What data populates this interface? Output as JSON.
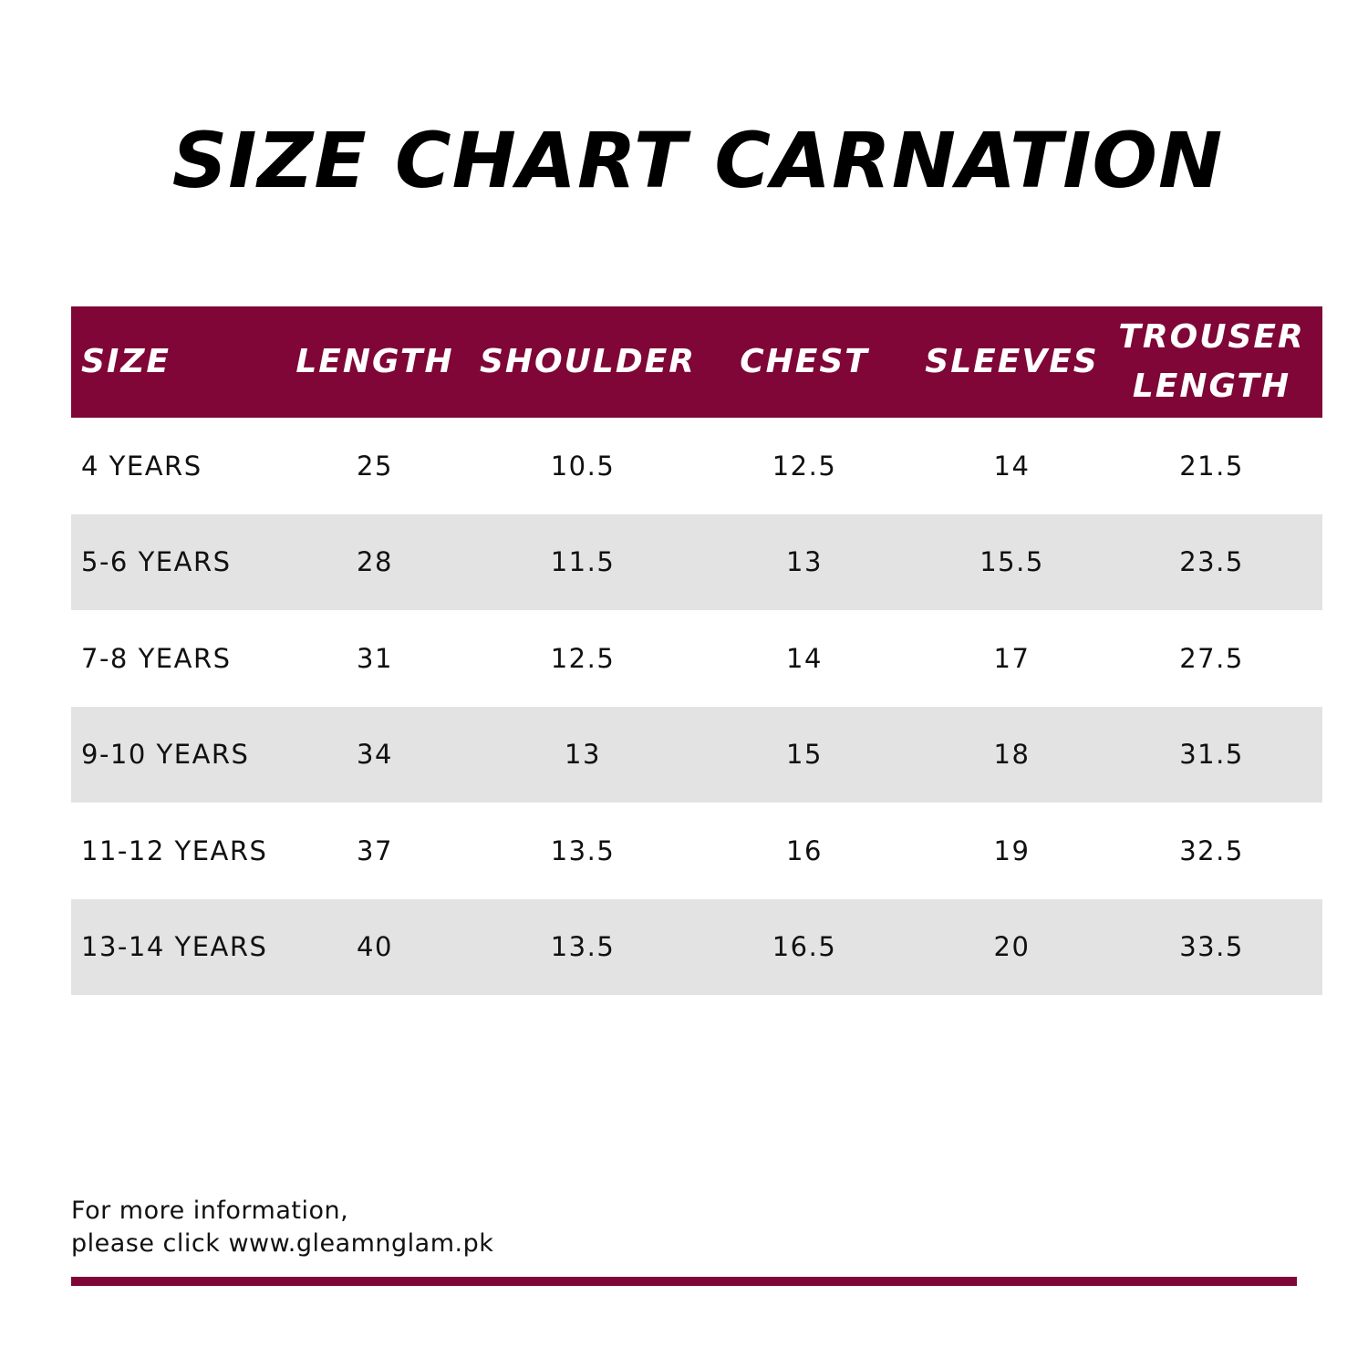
{
  "title": "SIZE CHART CARNATION",
  "colors": {
    "accent": "#7f0637",
    "row_alt": "#e3e3e3"
  },
  "table": {
    "headers": [
      "SIZE",
      "LENGTH",
      "SHOULDER",
      "CHEST",
      "SLEEVES"
    ],
    "trouser_header": [
      "TROUSER",
      "LENGTH"
    ],
    "rows": [
      [
        "4 YEARS",
        "25",
        "10.5",
        "12.5",
        "14",
        "21.5"
      ],
      [
        "5-6 YEARS",
        "28",
        "11.5",
        "13",
        "15.5",
        "23.5"
      ],
      [
        "7-8 YEARS",
        "31",
        "12.5",
        "14",
        "17",
        "27.5"
      ],
      [
        "9-10 YEARS",
        "34",
        "13",
        "15",
        "18",
        "31.5"
      ],
      [
        "11-12 YEARS",
        "37",
        "13.5",
        "16",
        "19",
        "32.5"
      ],
      [
        "13-14 YEARS",
        "40",
        "13.5",
        "16.5",
        "20",
        "33.5"
      ]
    ]
  },
  "footer": {
    "line1": "For more information,",
    "line2": "please click www.gleamnglam.pk"
  }
}
